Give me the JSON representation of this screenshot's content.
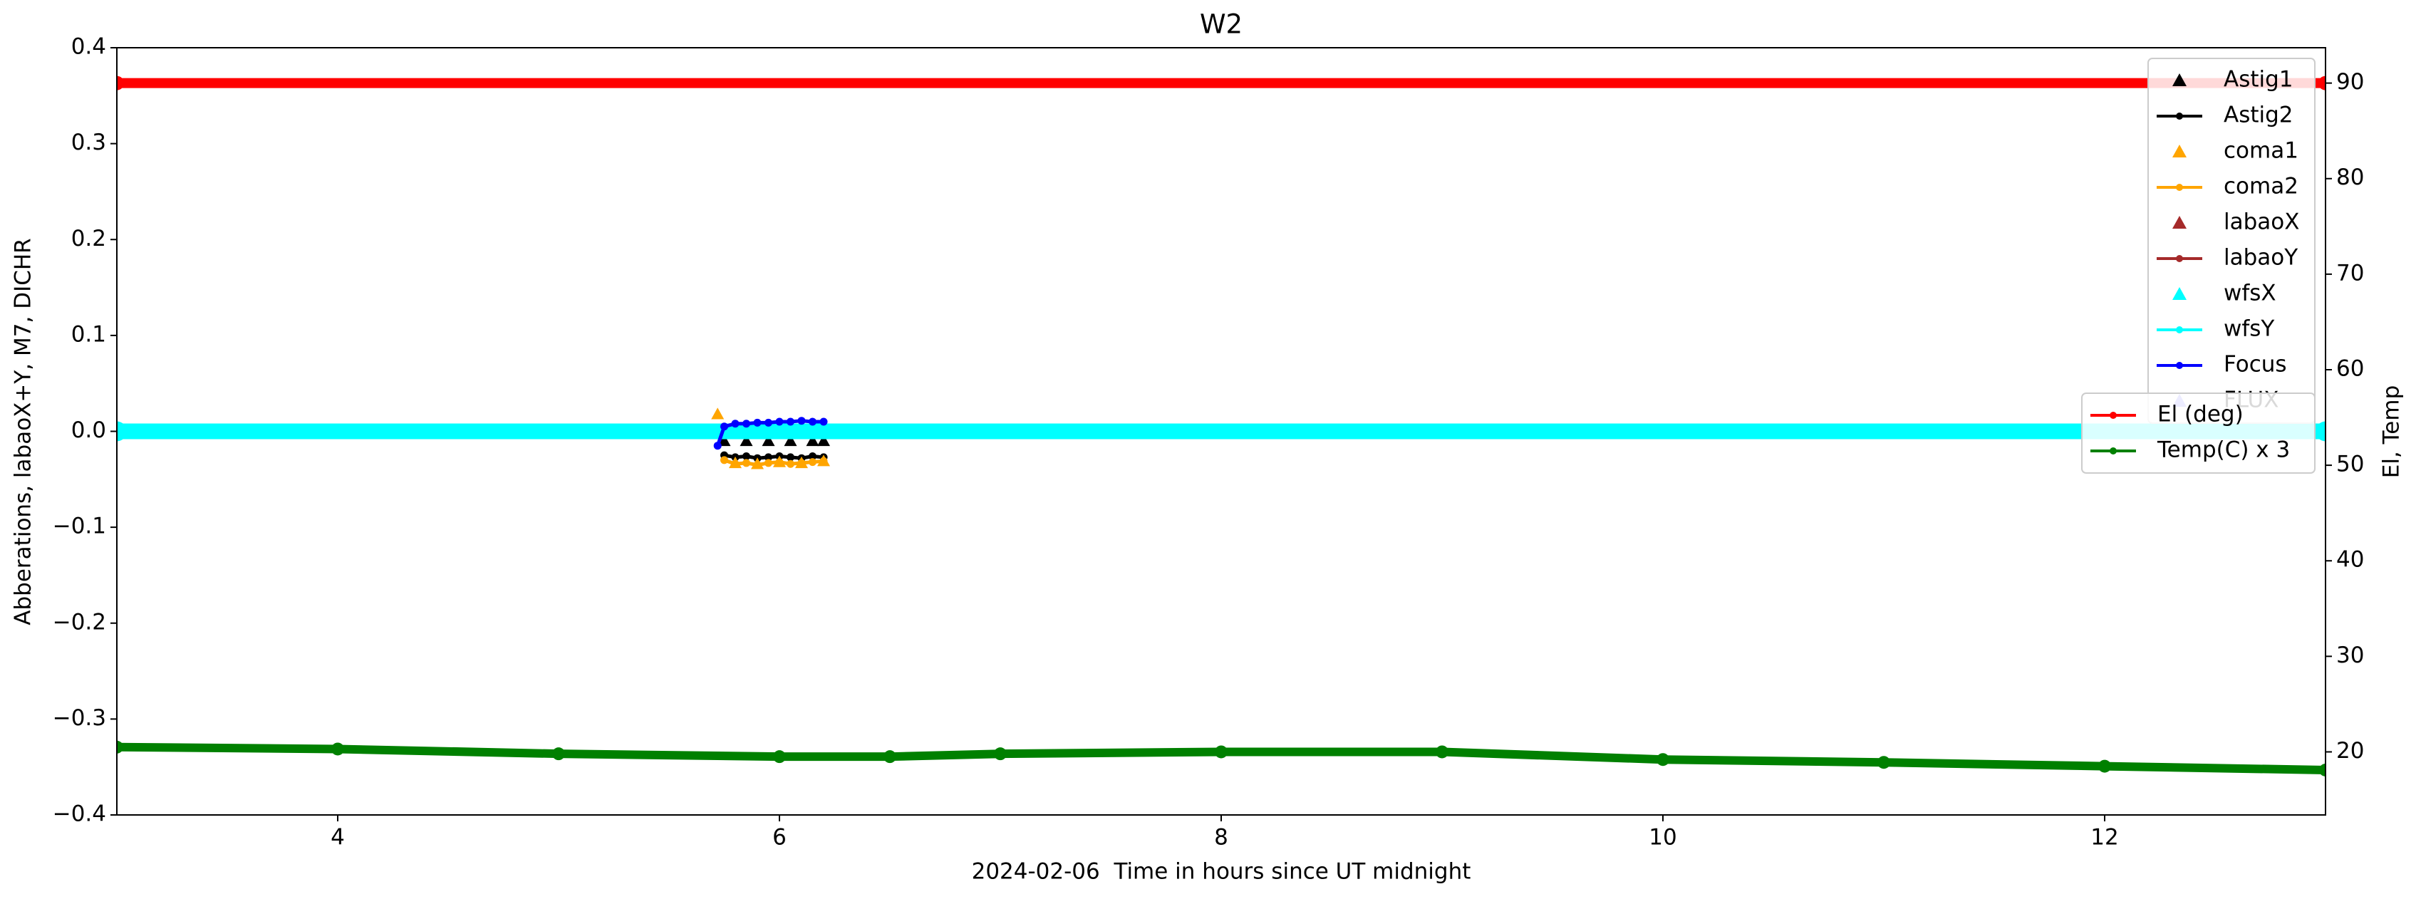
{
  "chart_data": {
    "type": "line",
    "title": "W2",
    "xlabel": "2024-02-06  Time in hours since UT midnight",
    "ylabel": "Abberations, labaoX+Y, M7, DICHR",
    "y2label": "El, Temp",
    "xlim": [
      3,
      13
    ],
    "xticks": [
      4,
      6,
      8,
      10,
      12
    ],
    "ylim": [
      -0.4,
      0.4
    ],
    "yticks": [
      {
        "value": -0.4,
        "label": "−0.4"
      },
      {
        "value": -0.3,
        "label": "−0.3"
      },
      {
        "value": -0.2,
        "label": "−0.2"
      },
      {
        "value": -0.1,
        "label": "−0.1"
      },
      {
        "value": 0,
        "label": "0.0"
      },
      {
        "value": 0.1,
        "label": "0.1"
      },
      {
        "value": 0.2,
        "label": "0.2"
      },
      {
        "value": 0.3,
        "label": "0.3"
      },
      {
        "value": 0.4,
        "label": "0.4"
      }
    ],
    "y2lim": [
      13.4,
      93.7
    ],
    "y2ticks": [
      20,
      30,
      40,
      50,
      60,
      70,
      80,
      90
    ],
    "series": [
      {
        "name": "Astig1",
        "color": "#000000",
        "marker": "triangle",
        "x": [
          5.75,
          5.85,
          5.95,
          6.05,
          6.15,
          6.2
        ],
        "values": [
          -0.01,
          -0.01,
          -0.01,
          -0.01,
          -0.01,
          -0.01
        ]
      },
      {
        "name": "Astig2",
        "color": "#000000",
        "marker": "line",
        "x": [
          5.75,
          5.8,
          5.85,
          5.9,
          5.95,
          6.0,
          6.05,
          6.1,
          6.15,
          6.2
        ],
        "values": [
          -0.025,
          -0.027,
          -0.026,
          -0.028,
          -0.027,
          -0.026,
          -0.027,
          -0.028,
          -0.026,
          -0.027
        ]
      },
      {
        "name": "coma1",
        "color": "#ffa500",
        "marker": "triangle",
        "x": [
          5.72,
          5.8,
          5.9,
          6.0,
          6.1,
          6.2
        ],
        "values": [
          0.018,
          -0.033,
          -0.034,
          -0.032,
          -0.033,
          -0.031
        ]
      },
      {
        "name": "coma2",
        "color": "#ffa500",
        "marker": "line",
        "x": [
          5.75,
          5.8,
          5.85,
          5.9,
          5.95,
          6.0,
          6.05,
          6.1,
          6.15,
          6.2
        ],
        "values": [
          -0.03,
          -0.034,
          -0.033,
          -0.035,
          -0.033,
          -0.032,
          -0.034,
          -0.033,
          -0.032,
          -0.031
        ]
      },
      {
        "name": "labaoX",
        "color": "#a52a2a",
        "marker": "triangle",
        "x": [],
        "values": []
      },
      {
        "name": "labaoY",
        "color": "#a52a2a",
        "marker": "line",
        "x": [],
        "values": []
      },
      {
        "name": "wfsX",
        "color": "#00ffff",
        "marker": "triangle",
        "x": [],
        "values": []
      },
      {
        "name": "wfsY",
        "color": "#00ffff",
        "marker": "line",
        "x": [
          3,
          13
        ],
        "values": [
          0,
          0
        ]
      },
      {
        "name": "Focus",
        "color": "#0000ff",
        "marker": "line",
        "x": [
          5.72,
          5.75,
          5.8,
          5.85,
          5.9,
          5.95,
          6.0,
          6.05,
          6.1,
          6.15,
          6.2
        ],
        "values": [
          -0.015,
          0.005,
          0.008,
          0.008,
          0.009,
          0.009,
          0.01,
          0.01,
          0.011,
          0.01,
          0.01
        ]
      },
      {
        "name": "FLUX",
        "color": "#8080ff",
        "marker": "triangle",
        "x": [],
        "values": []
      },
      {
        "name": "El (deg)",
        "color": "#ff0000",
        "marker": "line",
        "axis": "y2",
        "x": [
          3,
          13
        ],
        "values": [
          90,
          90
        ]
      },
      {
        "name": "Temp(C) x 3",
        "color": "#008000",
        "marker": "line",
        "axis": "y2",
        "x": [
          3,
          4,
          5,
          6,
          6.5,
          7,
          8,
          9,
          10,
          11,
          12,
          13
        ],
        "values": [
          20.5,
          20.3,
          19.8,
          19.5,
          19.5,
          19.8,
          20.0,
          20.0,
          19.2,
          18.9,
          18.5,
          18.1
        ]
      }
    ]
  }
}
